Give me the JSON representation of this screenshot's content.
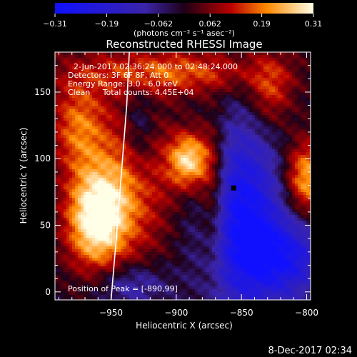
{
  "chart_data": {
    "type": "heatmap",
    "title": "Reconstructed RHESSI Image",
    "xlabel": "Heliocentric X (arcsec)",
    "ylabel": "Heliocentric Y (arcsec)",
    "xlim": [
      -993,
      -797
    ],
    "ylim": [
      -6,
      180
    ],
    "xticks": [
      -950,
      -900,
      -850,
      -800
    ],
    "yticks": [
      0,
      50,
      100,
      150
    ],
    "colorbar": {
      "min": -0.31,
      "max": 0.31,
      "ticks": [
        "-0.31",
        "-0.19",
        "-0.062",
        "0.062",
        "0.19",
        "0.31"
      ],
      "unit_label": "(photons cm⁻² s⁻¹ asec⁻²)"
    },
    "annotations": [
      "2-Jun-2017 02:36:24.000 to 02:48:24.000",
      "Detectors: 3F 6F 8F, Att 0",
      "Energy Range: 3.0 - 6.0 keV",
      "Clean     Total counts: 4.45E+04"
    ],
    "peak_text": "Position of Peak = [-890,99]",
    "peak_position": [
      -890,
      99
    ],
    "sources": [
      {
        "x": -962,
        "y": 55,
        "sx": 16,
        "sy": 26,
        "amp": 0.31
      },
      {
        "x": -935,
        "y": 80,
        "sx": 22,
        "sy": 40,
        "amp": 0.16
      },
      {
        "x": -890,
        "y": 99,
        "sx": 11,
        "sy": 15,
        "amp": 0.29
      },
      {
        "x": -872,
        "y": 72,
        "sx": 8,
        "sy": 40,
        "amp": 0.17
      },
      {
        "x": -800,
        "y": 85,
        "sx": 12,
        "sy": 20,
        "amp": 0.24
      },
      {
        "x": -905,
        "y": 165,
        "sx": 50,
        "sy": 12,
        "amp": 0.17
      },
      {
        "x": -828,
        "y": 150,
        "sx": 12,
        "sy": 20,
        "amp": 0.14
      },
      {
        "x": -975,
        "y": 125,
        "sx": 15,
        "sy": 25,
        "amp": 0.17
      },
      {
        "x": -850,
        "y": 55,
        "sx": 22,
        "sy": 50,
        "amp": -0.3
      },
      {
        "x": -815,
        "y": 25,
        "sx": 22,
        "sy": 22,
        "amp": -0.22
      },
      {
        "x": -935,
        "y": 5,
        "sx": 20,
        "sy": 12,
        "amp": -0.13
      },
      {
        "x": -928,
        "y": 120,
        "sx": 8,
        "sy": 25,
        "amp": -0.1
      }
    ],
    "limb_curve": [
      [
        -950,
        -6
      ],
      [
        -946,
        40
      ],
      [
        -942,
        90
      ],
      [
        -938,
        140
      ],
      [
        -936,
        180
      ]
    ],
    "dark_marker": [
      -856,
      78
    ]
  },
  "footer": {
    "timestamp": "8-Dec-2017 02:34"
  }
}
